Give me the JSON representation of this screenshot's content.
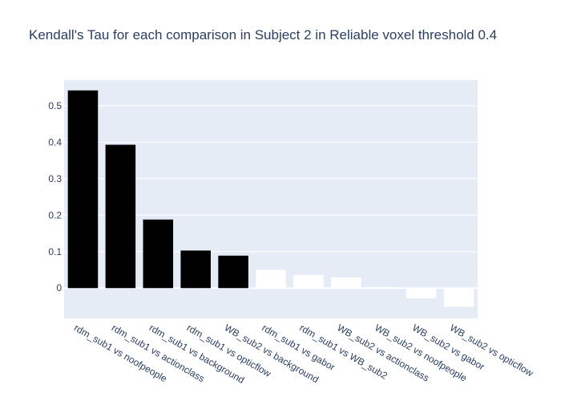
{
  "chart_data": {
    "type": "bar",
    "title": "Kendall's Tau for each comparison in Subject 2 in Reliable voxel threshold 0.4",
    "xlabel": "",
    "ylabel": "",
    "categories": [
      "rdm_sub1 vs noofpeople",
      "rdm_sub1 vs actionclass",
      "rdm_sub1 vs background",
      "rdm_sub1 vs opticflow",
      "WB_sub2 vs background",
      "rdm_sub1 vs gabor",
      "rdm_sub1 vs WB_sub2",
      "WB_sub2 vs actionclass",
      "WB_sub2 vs noofpeople",
      "WB_sub2 vs gabor",
      "WB_sub2 vs opticflow"
    ],
    "values": [
      0.542,
      0.393,
      0.188,
      0.103,
      0.089,
      0.05,
      0.036,
      0.029,
      0.002,
      -0.028,
      -0.051
    ],
    "bar_colors": [
      "#000000",
      "#000000",
      "#000000",
      "#000000",
      "#000000",
      "#ffffff",
      "#ffffff",
      "#ffffff",
      "#ffffff",
      "#ffffff",
      "#ffffff"
    ],
    "yticks": [
      0,
      0.1,
      0.2,
      0.3,
      0.4,
      0.5
    ],
    "ylim": [
      -0.083,
      0.57
    ],
    "grid": true,
    "legend": "none"
  },
  "colors": {
    "plot_background": "#e5ecf6",
    "gridline": "#ffffff",
    "text": "#2a3f5f"
  }
}
